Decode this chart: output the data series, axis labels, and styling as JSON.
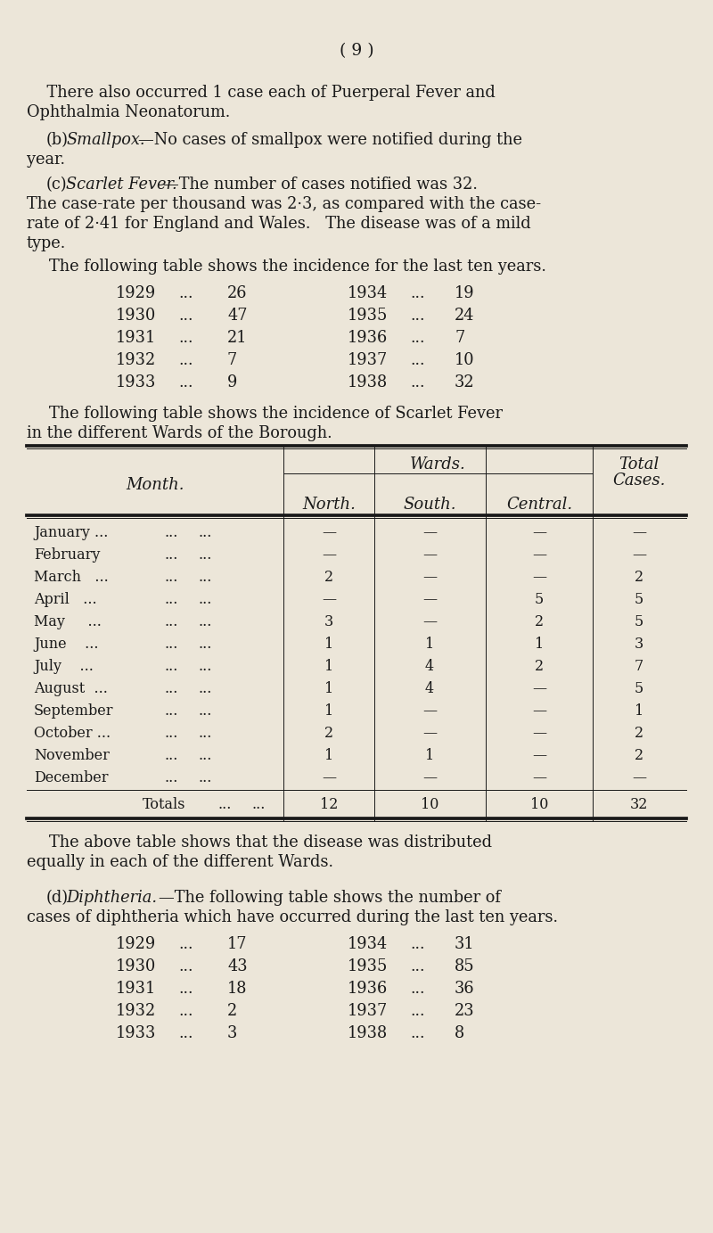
{
  "bg_color": "#ece6d9",
  "text_color": "#1a1a1a",
  "page_number": "( 9 )",
  "font_size_body": 12.8,
  "font_size_table": 11.5,
  "font_size_page": 13.5,
  "scarlet_years_left": [
    "1929",
    "1930",
    "1931",
    "1932",
    "1933"
  ],
  "scarlet_vals_left": [
    "26",
    "47",
    "21",
    "7",
    "9"
  ],
  "scarlet_years_right": [
    "1934",
    "1935",
    "1936",
    "1937",
    "1938"
  ],
  "scarlet_vals_right": [
    "19",
    "24",
    "7",
    "10",
    "32"
  ],
  "table_months": [
    "January ...",
    "February",
    "March   ...",
    "April   ...",
    "May     ...",
    "June    ...",
    "July    ...",
    "August  ...",
    "September",
    "October ...",
    "November",
    "December"
  ],
  "table_north": [
    "—",
    "—",
    "2",
    "—",
    "3",
    "1",
    "1",
    "1",
    "1",
    "2",
    "1",
    "—"
  ],
  "table_south": [
    "—",
    "—",
    "—",
    "—",
    "—",
    "1",
    "4",
    "4",
    "—",
    "—",
    "1",
    "—"
  ],
  "table_central": [
    "—",
    "—",
    "—",
    "5",
    "2",
    "1",
    "2",
    "—",
    "—",
    "—",
    "—",
    "—"
  ],
  "table_total": [
    "—",
    "—",
    "2",
    "5",
    "5",
    "3",
    "7",
    "5",
    "1",
    "2",
    "2",
    "—"
  ],
  "totals_north": "12",
  "totals_south": "10",
  "totals_central": "10",
  "totals_total": "32",
  "diph_years_left": [
    "1929",
    "1930",
    "1931",
    "1932",
    "1933"
  ],
  "diph_vals_left": [
    "17",
    "43",
    "18",
    "2",
    "3"
  ],
  "diph_years_right": [
    "1934",
    "1935",
    "1936",
    "1937",
    "1938"
  ],
  "diph_vals_right": [
    "31",
    "85",
    "36",
    "23",
    "8"
  ]
}
